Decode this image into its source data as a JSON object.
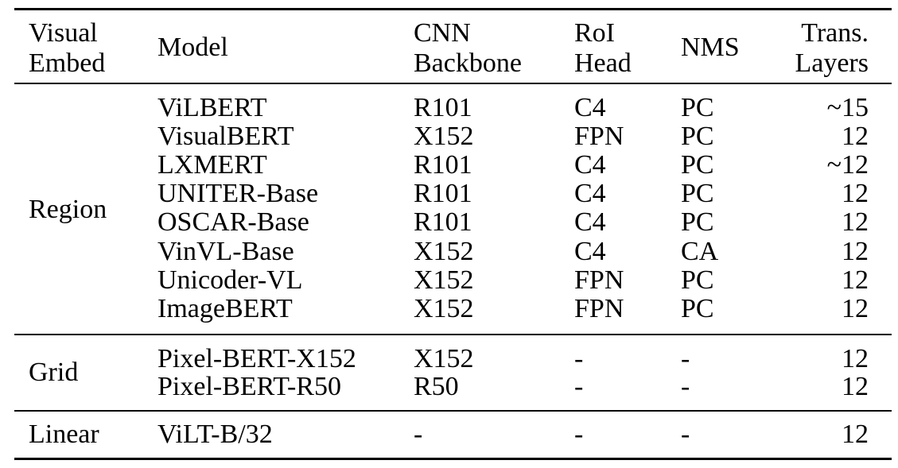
{
  "header": {
    "visual_embed": [
      "Visual",
      "Embed"
    ],
    "model": "Model",
    "cnn_backbone": [
      "CNN",
      "Backbone"
    ],
    "roi_head": [
      "RoI",
      "Head"
    ],
    "nms": "NMS",
    "trans_layers": [
      "Trans.",
      "Layers"
    ]
  },
  "groups": [
    {
      "label": "Region",
      "rows": [
        {
          "model": "ViLBERT",
          "backbone": "R101",
          "roi": "C4",
          "nms": "PC",
          "layers": "~15"
        },
        {
          "model": "VisualBERT",
          "backbone": "X152",
          "roi": "FPN",
          "nms": "PC",
          "layers": "12"
        },
        {
          "model": "LXMERT",
          "backbone": "R101",
          "roi": "C4",
          "nms": "PC",
          "layers": "~12"
        },
        {
          "model": "UNITER-Base",
          "backbone": "R101",
          "roi": "C4",
          "nms": "PC",
          "layers": "12"
        },
        {
          "model": "OSCAR-Base",
          "backbone": "R101",
          "roi": "C4",
          "nms": "PC",
          "layers": "12"
        },
        {
          "model": "VinVL-Base",
          "backbone": "X152",
          "roi": "C4",
          "nms": "CA",
          "layers": "12"
        },
        {
          "model": "Unicoder-VL",
          "backbone": "X152",
          "roi": "FPN",
          "nms": "PC",
          "layers": "12"
        },
        {
          "model": "ImageBERT",
          "backbone": "X152",
          "roi": "FPN",
          "nms": "PC",
          "layers": "12"
        }
      ]
    },
    {
      "label": "Grid",
      "rows": [
        {
          "model": "Pixel-BERT-X152",
          "backbone": "X152",
          "roi": "-",
          "nms": "-",
          "layers": "12"
        },
        {
          "model": "Pixel-BERT-R50",
          "backbone": "R50",
          "roi": "-",
          "nms": "-",
          "layers": "12"
        }
      ]
    },
    {
      "label": "Linear",
      "rows": [
        {
          "model": "ViLT-B/32",
          "backbone": "-",
          "roi": "-",
          "nms": "-",
          "layers": "12"
        }
      ]
    }
  ]
}
